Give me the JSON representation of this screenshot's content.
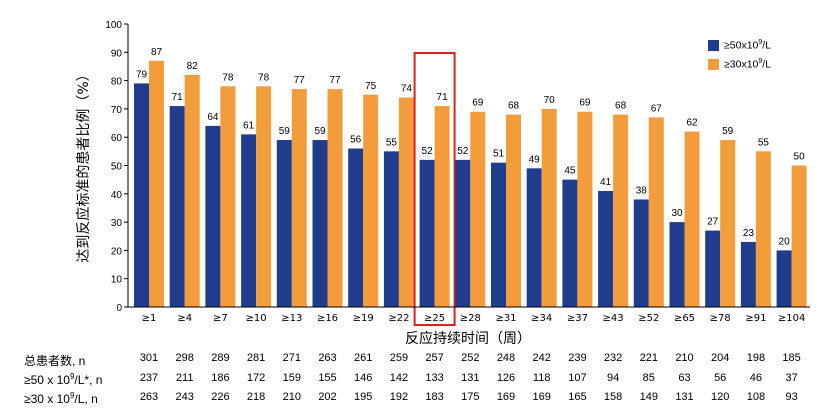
{
  "chart_data": {
    "type": "bar",
    "title": "",
    "xlabel": "反应持续时间（周）",
    "ylabel": "达到反应标准的患者比例（%）",
    "ylim": [
      0,
      100
    ],
    "yticks": [
      0,
      10,
      20,
      30,
      40,
      50,
      60,
      70,
      80,
      90,
      100
    ],
    "categories": [
      "≥1",
      "≥4",
      "≥7",
      "≥10",
      "≥13",
      "≥16",
      "≥19",
      "≥22",
      "≥25",
      "≥28",
      "≥31",
      "≥34",
      "≥37",
      "≥43",
      "≥52",
      "≥65",
      "≥78",
      "≥91",
      "≥104"
    ],
    "series": [
      {
        "name": "≥50x10⁹/L",
        "color": "#1f3d8c",
        "values": [
          79,
          71,
          64,
          61,
          59,
          59,
          56,
          55,
          52,
          52,
          51,
          49,
          45,
          41,
          38,
          30,
          27,
          23,
          20
        ]
      },
      {
        "name": "≥30x10⁹/L",
        "color": "#f39c3b",
        "values": [
          87,
          82,
          78,
          78,
          77,
          77,
          75,
          74,
          71,
          69,
          68,
          70,
          69,
          68,
          67,
          62,
          59,
          55,
          50
        ]
      }
    ],
    "highlight_category": "≥25",
    "highlight_color": "#e02020",
    "grid": false,
    "legend_position": "top-right"
  },
  "legend": {
    "items": [
      {
        "label_prefix": "≥50x10",
        "label_sup": "9",
        "label_suffix": "/L",
        "color": "#1f3d8c"
      },
      {
        "label_prefix": "≥30x10",
        "label_sup": "9",
        "label_suffix": "/L",
        "color": "#f39c3b"
      }
    ]
  },
  "table": {
    "rows": [
      {
        "label": "总患者数, n",
        "values": [
          301,
          298,
          289,
          281,
          271,
          263,
          261,
          259,
          257,
          252,
          248,
          242,
          239,
          232,
          221,
          210,
          204,
          198,
          185
        ]
      },
      {
        "label_prefix": "≥50 x 10",
        "label_sup": "9",
        "label_suffix": "/L*, n",
        "values": [
          237,
          211,
          186,
          172,
          159,
          155,
          146,
          142,
          133,
          131,
          126,
          118,
          107,
          94,
          85,
          63,
          56,
          46,
          37
        ]
      },
      {
        "label_prefix": "≥30 x 10",
        "label_sup": "9",
        "label_suffix": "/L, n",
        "values": [
          263,
          243,
          226,
          218,
          210,
          202,
          195,
          192,
          183,
          175,
          169,
          169,
          165,
          158,
          149,
          131,
          120,
          108,
          93
        ]
      }
    ]
  }
}
